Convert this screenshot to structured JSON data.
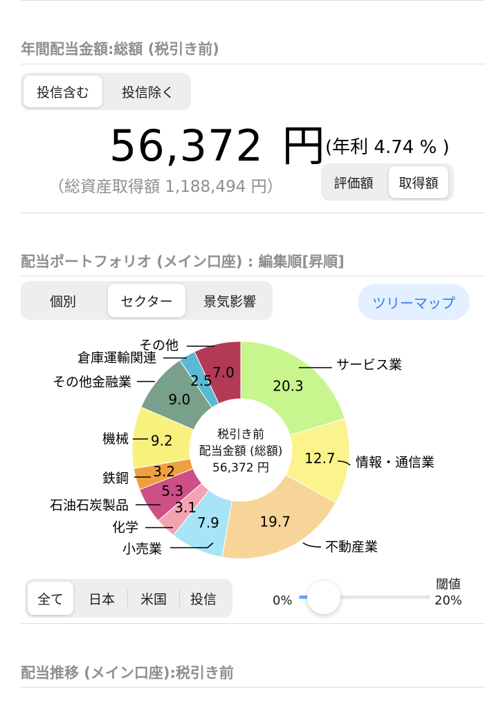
{
  "dividend": {
    "section_title": "年間配当金額:総額 (税引き前)",
    "fund_toggle": [
      {
        "label": "投信含む",
        "selected": true
      },
      {
        "label": "投信除く",
        "selected": false
      }
    ],
    "amount": "56,372",
    "amount_unit": "円",
    "yield_text": "(年利 4.74 % )",
    "acquisition_text": "（総資産取得額 1,188,494 円）",
    "basis_toggle": [
      {
        "label": "評価額",
        "selected": false
      },
      {
        "label": "取得額",
        "selected": true
      }
    ]
  },
  "portfolio": {
    "section_title": "配当ポートフォリオ (メイン口座) : 編集順[昇順]",
    "view_tabs": [
      {
        "label": "個別",
        "selected": false
      },
      {
        "label": "セクター",
        "selected": true
      },
      {
        "label": "景気影響",
        "selected": false
      }
    ],
    "treemap_label": "ツリーマップ",
    "center_label": [
      "税引き前",
      "配当金額 (総額)",
      "56,372 円"
    ],
    "region_filter": [
      {
        "label": "全て",
        "selected": true
      },
      {
        "label": "日本",
        "selected": false
      },
      {
        "label": "米国",
        "selected": false
      },
      {
        "label": "投信",
        "selected": false
      }
    ],
    "threshold": {
      "title": "閾値",
      "min_label": "0%",
      "max_label": "20%",
      "value_fraction": 0.05
    }
  },
  "chart_data": {
    "type": "pie",
    "donut": true,
    "categories": [
      "サービス業",
      "情報・通信業",
      "不動産業",
      "小売業",
      "化学",
      "石油石炭製品",
      "鉄鋼",
      "機械",
      "その他金融業",
      "倉庫運輸関連",
      "その他"
    ],
    "values": [
      20.3,
      12.7,
      19.7,
      7.9,
      3.1,
      5.3,
      3.2,
      9.2,
      9.0,
      2.5,
      7.0
    ],
    "value_labels": [
      "20.3",
      "12.7",
      "19.7",
      "7.9",
      "3.1",
      "5.3",
      "3.2",
      "9.2",
      "9.0",
      "2.5",
      "7.0"
    ],
    "colors": [
      "#c9f58e",
      "#fbf38c",
      "#f7d497",
      "#a8e4f8",
      "#f3a2b0",
      "#cd4f86",
      "#eda03f",
      "#f9f17d",
      "#78a08a",
      "#5ab9d5",
      "#b23a55"
    ]
  },
  "transition": {
    "section_title": "配当推移 (メイン口座):税引き前"
  }
}
